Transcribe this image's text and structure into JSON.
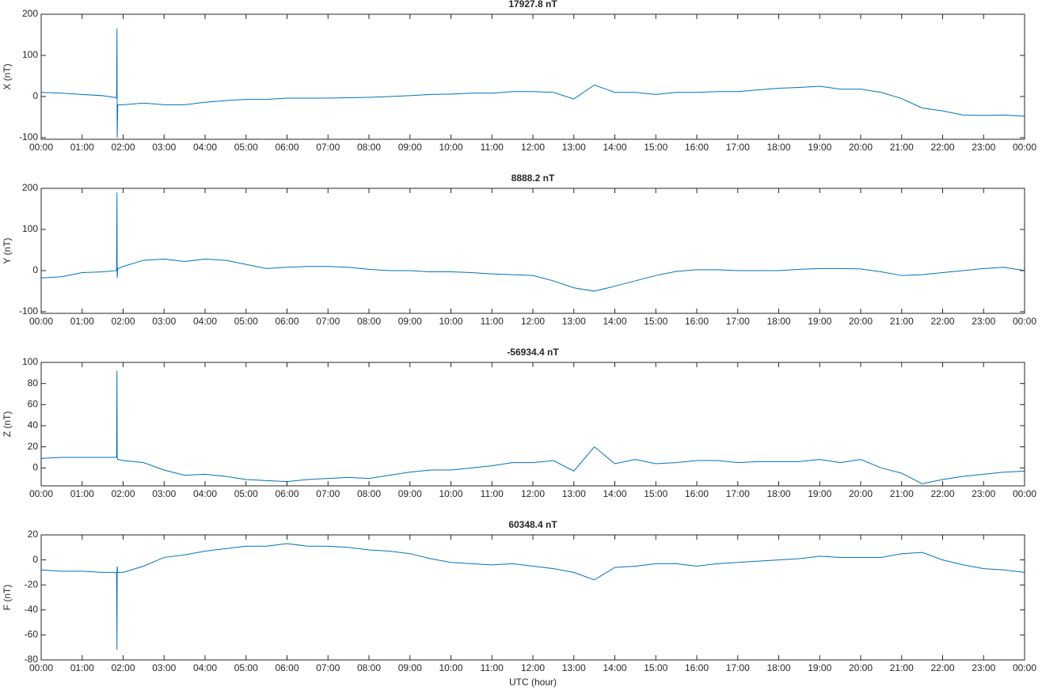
{
  "chart_data": [
    {
      "type": "line",
      "title": "17927.8 nT",
      "ylabel": "X (nT)",
      "color": "#0072bd",
      "x": [
        0,
        0.5,
        1,
        1.5,
        1.84,
        1.85,
        1.855,
        1.87,
        2,
        2.5,
        3,
        3.5,
        4,
        4.5,
        5,
        5.5,
        6,
        6.5,
        7,
        7.5,
        8,
        8.5,
        9,
        9.5,
        10,
        10.5,
        11,
        11.5,
        12,
        12.5,
        13,
        13.5,
        14,
        14.5,
        15,
        15.5,
        16,
        16.5,
        17,
        17.5,
        18,
        18.5,
        19,
        19.5,
        20,
        20.5,
        21,
        21.5,
        22,
        22.5,
        23,
        23.5,
        24
      ],
      "values": [
        10,
        8,
        5,
        2,
        -3,
        165,
        -100,
        -20,
        -20,
        -16,
        -20,
        -20,
        -14,
        -10,
        -7,
        -7,
        -4,
        -4,
        -4,
        -3,
        -2,
        0,
        2,
        5,
        6,
        8,
        8,
        12,
        12,
        10,
        -6,
        28,
        10,
        10,
        5,
        10,
        10,
        12,
        12,
        16,
        20,
        22,
        25,
        18,
        18,
        10,
        -5,
        -28,
        -35,
        -45,
        -46,
        -45,
        -48
      ],
      "ylim": [
        -104,
        200
      ],
      "yticks": [
        -100,
        0,
        100,
        200
      ],
      "xlim": [
        0,
        24
      ],
      "xticks": [
        {
          "value": 0,
          "label": "00:00"
        },
        {
          "value": 1,
          "label": "01:00"
        },
        {
          "value": 2,
          "label": "02:00"
        },
        {
          "value": 3,
          "label": "03:00"
        },
        {
          "value": 4,
          "label": "04:00"
        },
        {
          "value": 5,
          "label": "05:00"
        },
        {
          "value": 6,
          "label": "06:00"
        },
        {
          "value": 7,
          "label": "07:00"
        },
        {
          "value": 8,
          "label": "08:00"
        },
        {
          "value": 9,
          "label": "09:00"
        },
        {
          "value": 10,
          "label": "10:00"
        },
        {
          "value": 11,
          "label": "11:00"
        },
        {
          "value": 12,
          "label": "12:00"
        },
        {
          "value": 13,
          "label": "13:00"
        },
        {
          "value": 14,
          "label": "14:00"
        },
        {
          "value": 15,
          "label": "15:00"
        },
        {
          "value": 16,
          "label": "16:00"
        },
        {
          "value": 17,
          "label": "17:00"
        },
        {
          "value": 18,
          "label": "18:00"
        },
        {
          "value": 19,
          "label": "19:00"
        },
        {
          "value": 20,
          "label": "20:00"
        },
        {
          "value": 21,
          "label": "21:00"
        },
        {
          "value": 22,
          "label": "22:00"
        },
        {
          "value": 23,
          "label": "23:00"
        },
        {
          "value": 24,
          "label": "00:00"
        }
      ]
    },
    {
      "type": "line",
      "title": "8888.2 nT",
      "ylabel": "Y (nT)",
      "color": "#0072bd",
      "x": [
        0,
        0.5,
        1,
        1.5,
        1.84,
        1.85,
        1.855,
        1.87,
        2,
        2.5,
        3,
        3.5,
        4,
        4.5,
        5,
        5.5,
        6,
        6.5,
        7,
        7.5,
        8,
        8.5,
        9,
        9.5,
        10,
        10.5,
        11,
        11.5,
        12,
        12.5,
        13,
        13.5,
        14,
        14.5,
        15,
        15.5,
        16,
        16.5,
        17,
        17.5,
        18,
        18.5,
        19,
        19.5,
        20,
        20.5,
        21,
        21.5,
        22,
        22.5,
        23,
        23.5,
        24
      ],
      "values": [
        -18,
        -15,
        -5,
        -3,
        0,
        190,
        -18,
        5,
        10,
        25,
        28,
        22,
        28,
        25,
        15,
        5,
        8,
        10,
        10,
        8,
        3,
        0,
        0,
        -3,
        -3,
        -5,
        -8,
        -10,
        -12,
        -25,
        -42,
        -50,
        -38,
        -25,
        -12,
        -2,
        2,
        2,
        0,
        0,
        0,
        3,
        5,
        5,
        4,
        -3,
        -12,
        -10,
        -5,
        0,
        5,
        8,
        0
      ],
      "ylim": [
        -104,
        200
      ],
      "yticks": [
        -100,
        0,
        100,
        200
      ],
      "xlim": [
        0,
        24
      ],
      "xticks": [
        {
          "value": 0,
          "label": "00:00"
        },
        {
          "value": 1,
          "label": "01:00"
        },
        {
          "value": 2,
          "label": "02:00"
        },
        {
          "value": 3,
          "label": "03:00"
        },
        {
          "value": 4,
          "label": "04:00"
        },
        {
          "value": 5,
          "label": "05:00"
        },
        {
          "value": 6,
          "label": "06:00"
        },
        {
          "value": 7,
          "label": "07:00"
        },
        {
          "value": 8,
          "label": "08:00"
        },
        {
          "value": 9,
          "label": "09:00"
        },
        {
          "value": 10,
          "label": "10:00"
        },
        {
          "value": 11,
          "label": "11:00"
        },
        {
          "value": 12,
          "label": "12:00"
        },
        {
          "value": 13,
          "label": "13:00"
        },
        {
          "value": 14,
          "label": "14:00"
        },
        {
          "value": 15,
          "label": "15:00"
        },
        {
          "value": 16,
          "label": "16:00"
        },
        {
          "value": 17,
          "label": "17:00"
        },
        {
          "value": 18,
          "label": "18:00"
        },
        {
          "value": 19,
          "label": "19:00"
        },
        {
          "value": 20,
          "label": "20:00"
        },
        {
          "value": 21,
          "label": "21:00"
        },
        {
          "value": 22,
          "label": "22:00"
        },
        {
          "value": 23,
          "label": "23:00"
        },
        {
          "value": 24,
          "label": "00:00"
        }
      ]
    },
    {
      "type": "line",
      "title": "-56934.4 nT",
      "ylabel": "Z (nT)",
      "color": "#0072bd",
      "x": [
        0,
        0.5,
        1,
        1.5,
        1.84,
        1.85,
        1.855,
        1.87,
        2,
        2.5,
        3,
        3.5,
        4,
        4.5,
        5,
        5.5,
        6,
        6.5,
        7,
        7.5,
        8,
        8.5,
        9,
        9.5,
        10,
        10.5,
        11,
        11.5,
        12,
        12.5,
        13,
        13.5,
        14,
        14.5,
        15,
        15.5,
        16,
        16.5,
        17,
        17.5,
        18,
        18.5,
        19,
        19.5,
        20,
        20.5,
        21,
        21.5,
        22,
        22.5,
        23,
        23.5,
        24
      ],
      "values": [
        9,
        10,
        10,
        10,
        10,
        92,
        10,
        8,
        7,
        5,
        -2,
        -7,
        -6,
        -8,
        -11,
        -12,
        -13,
        -11,
        -10,
        -9,
        -10,
        -7,
        -4,
        -2,
        -2,
        0,
        2,
        5,
        5,
        7,
        -3,
        20,
        4,
        8,
        4,
        5,
        7,
        7,
        5,
        6,
        6,
        6,
        8,
        5,
        8,
        0,
        -5,
        -15,
        -11,
        -8,
        -6,
        -4,
        -3
      ],
      "ylim": [
        -17,
        100
      ],
      "yticks": [
        0,
        20,
        40,
        60,
        80,
        100
      ],
      "xlim": [
        0,
        24
      ],
      "xticks": [
        {
          "value": 0,
          "label": "00:00"
        },
        {
          "value": 1,
          "label": "01:00"
        },
        {
          "value": 2,
          "label": "02:00"
        },
        {
          "value": 3,
          "label": "03:00"
        },
        {
          "value": 4,
          "label": "04:00"
        },
        {
          "value": 5,
          "label": "05:00"
        },
        {
          "value": 6,
          "label": "06:00"
        },
        {
          "value": 7,
          "label": "07:00"
        },
        {
          "value": 8,
          "label": "08:00"
        },
        {
          "value": 9,
          "label": "09:00"
        },
        {
          "value": 10,
          "label": "10:00"
        },
        {
          "value": 11,
          "label": "11:00"
        },
        {
          "value": 12,
          "label": "12:00"
        },
        {
          "value": 13,
          "label": "13:00"
        },
        {
          "value": 14,
          "label": "14:00"
        },
        {
          "value": 15,
          "label": "15:00"
        },
        {
          "value": 16,
          "label": "16:00"
        },
        {
          "value": 17,
          "label": "17:00"
        },
        {
          "value": 18,
          "label": "18:00"
        },
        {
          "value": 19,
          "label": "19:00"
        },
        {
          "value": 20,
          "label": "20:00"
        },
        {
          "value": 21,
          "label": "21:00"
        },
        {
          "value": 22,
          "label": "22:00"
        },
        {
          "value": 23,
          "label": "23:00"
        },
        {
          "value": 24,
          "label": "00:00"
        }
      ]
    },
    {
      "type": "line",
      "title": "60348.4 nT",
      "ylabel": "F (nT)",
      "xlabel": "UTC (hour)",
      "color": "#0072bd",
      "x": [
        0,
        0.5,
        1,
        1.5,
        1.84,
        1.85,
        1.855,
        1.87,
        2,
        2.5,
        3,
        3.5,
        4,
        4.5,
        5,
        5.5,
        6,
        6.5,
        7,
        7.5,
        8,
        8.5,
        9,
        9.5,
        10,
        10.5,
        11,
        11.5,
        12,
        12.5,
        13,
        13.5,
        14,
        14.5,
        15,
        15.5,
        16,
        16.5,
        17,
        17.5,
        18,
        18.5,
        19,
        19.5,
        20,
        20.5,
        21,
        21.5,
        22,
        22.5,
        23,
        23.5,
        24
      ],
      "values": [
        -8,
        -9,
        -9,
        -10,
        -10,
        -72,
        -5,
        -10,
        -10,
        -5,
        2,
        4,
        7,
        9,
        11,
        11,
        13,
        11,
        11,
        10,
        8,
        7,
        5,
        1,
        -2,
        -3,
        -4,
        -3,
        -5,
        -7,
        -10,
        -16,
        -6,
        -5,
        -3,
        -3,
        -5,
        -3,
        -2,
        -1,
        0,
        1,
        3,
        2,
        2,
        2,
        5,
        6,
        0,
        -4,
        -7,
        -8,
        -10
      ],
      "ylim": [
        -80,
        20
      ],
      "yticks": [
        -80,
        -60,
        -40,
        -20,
        0,
        20
      ],
      "xlim": [
        0,
        24
      ],
      "xticks": [
        {
          "value": 0,
          "label": "00:00"
        },
        {
          "value": 1,
          "label": "01:00"
        },
        {
          "value": 2,
          "label": "02:00"
        },
        {
          "value": 3,
          "label": "03:00"
        },
        {
          "value": 4,
          "label": "04:00"
        },
        {
          "value": 5,
          "label": "05:00"
        },
        {
          "value": 6,
          "label": "06:00"
        },
        {
          "value": 7,
          "label": "07:00"
        },
        {
          "value": 8,
          "label": "08:00"
        },
        {
          "value": 9,
          "label": "09:00"
        },
        {
          "value": 10,
          "label": "10:00"
        },
        {
          "value": 11,
          "label": "11:00"
        },
        {
          "value": 12,
          "label": "12:00"
        },
        {
          "value": 13,
          "label": "13:00"
        },
        {
          "value": 14,
          "label": "14:00"
        },
        {
          "value": 15,
          "label": "15:00"
        },
        {
          "value": 16,
          "label": "16:00"
        },
        {
          "value": 17,
          "label": "17:00"
        },
        {
          "value": 18,
          "label": "18:00"
        },
        {
          "value": 19,
          "label": "19:00"
        },
        {
          "value": 20,
          "label": "20:00"
        },
        {
          "value": 21,
          "label": "21:00"
        },
        {
          "value": 22,
          "label": "22:00"
        },
        {
          "value": 23,
          "label": "23:00"
        },
        {
          "value": 24,
          "label": "00:00"
        }
      ]
    }
  ]
}
